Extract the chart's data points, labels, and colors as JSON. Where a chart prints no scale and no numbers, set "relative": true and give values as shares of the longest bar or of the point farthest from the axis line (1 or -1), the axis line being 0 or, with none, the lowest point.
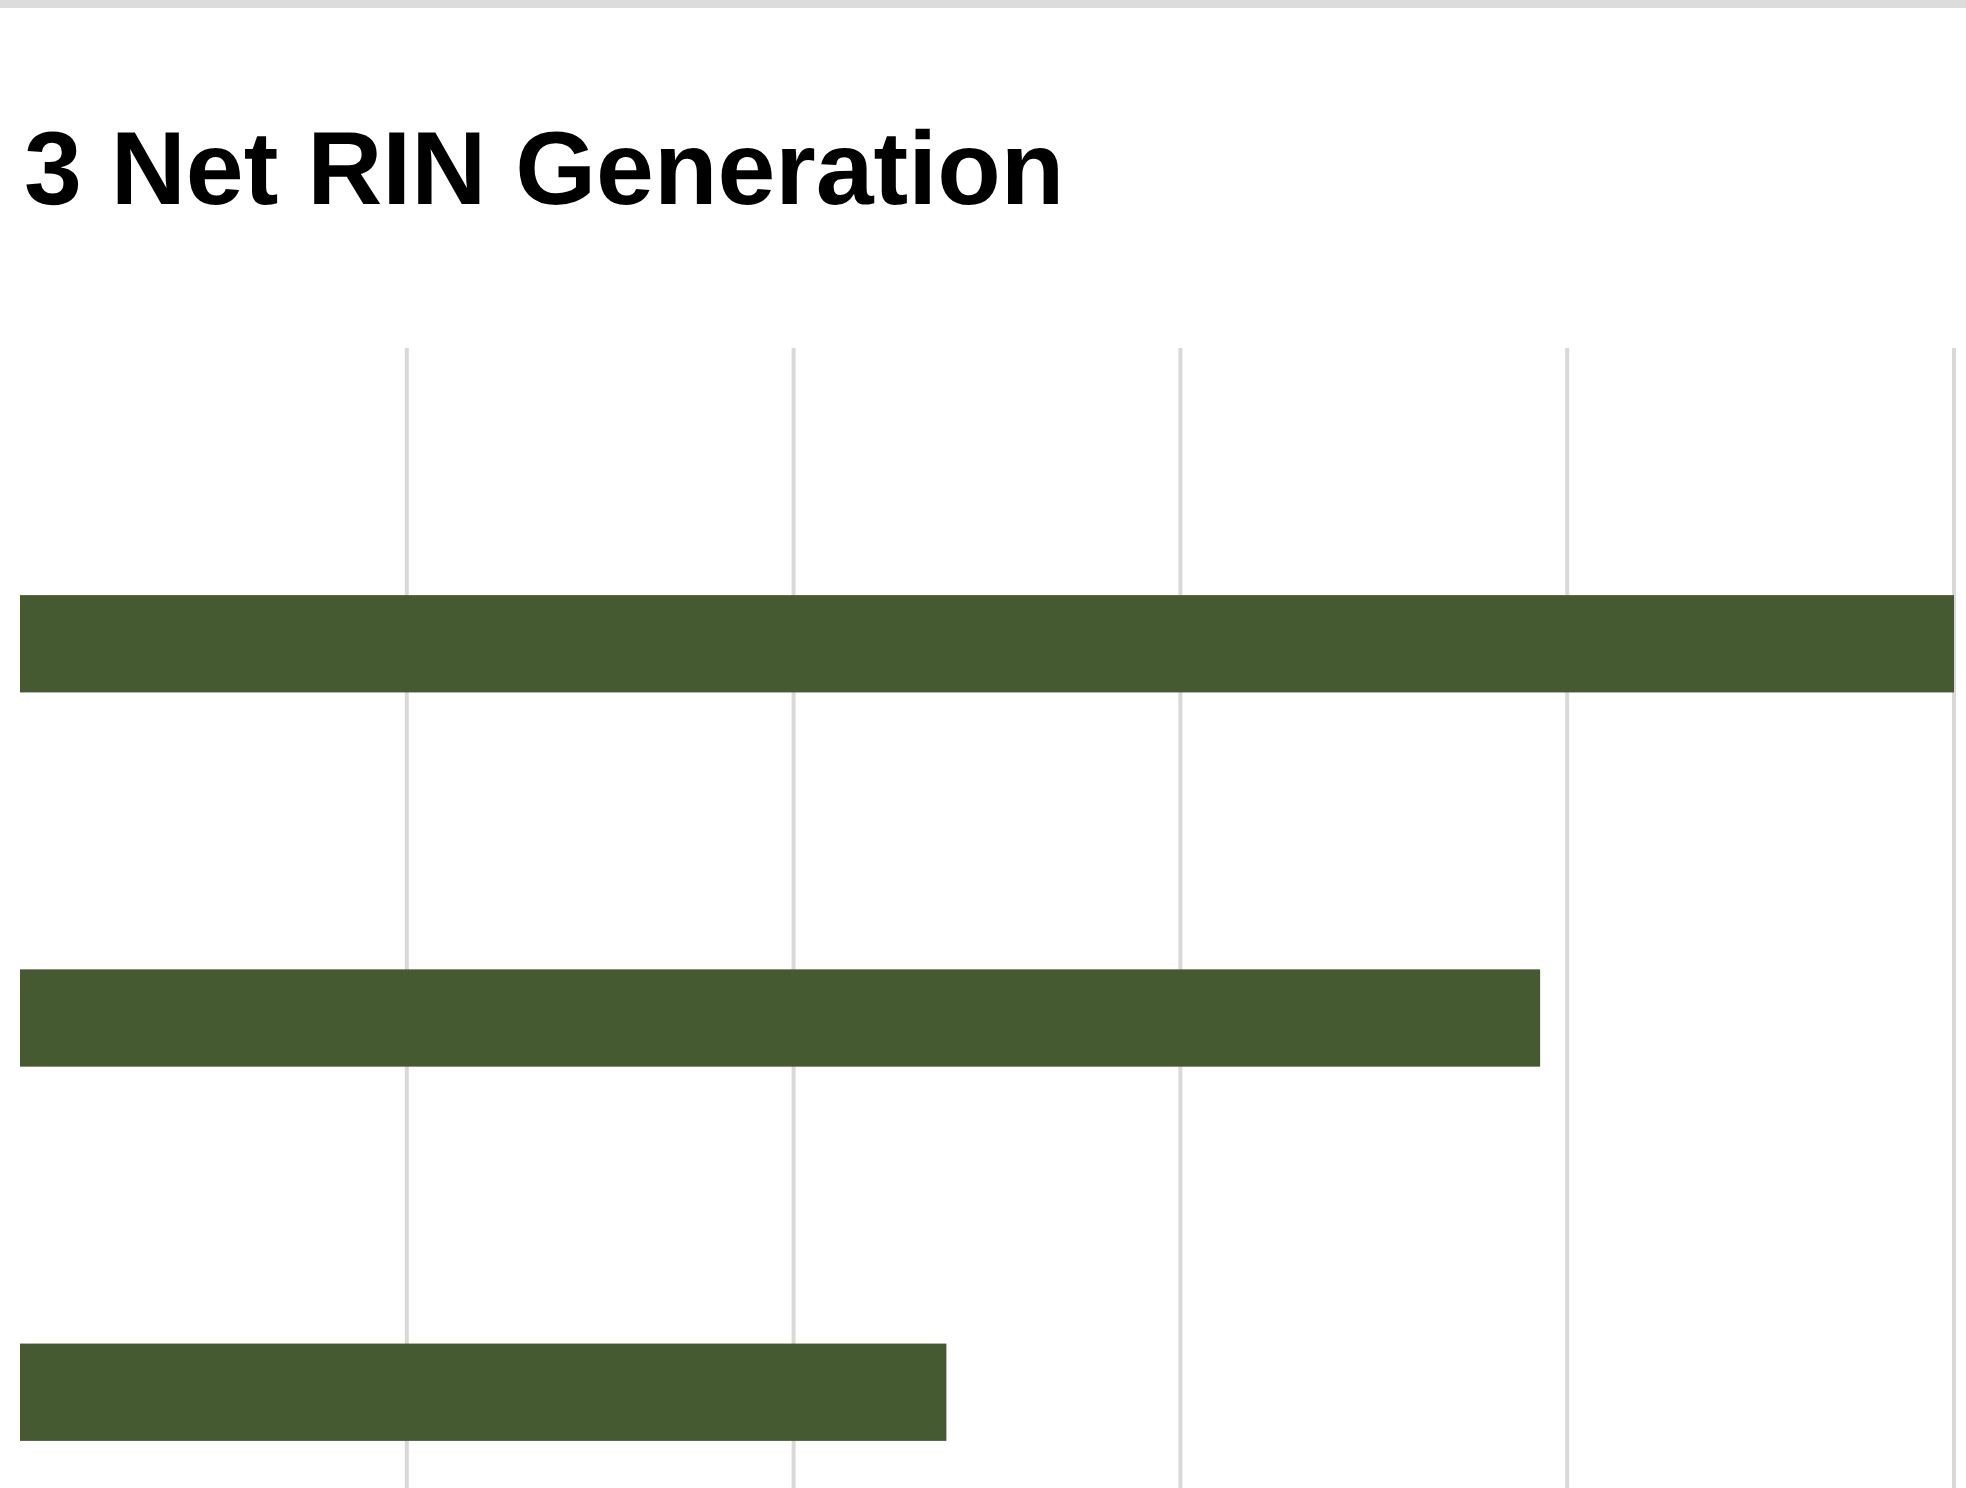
{
  "chart_data": {
    "type": "bar",
    "orientation": "horizontal",
    "relative": true,
    "title": "3 Net RIN Generation",
    "categories": [
      null,
      null,
      null
    ],
    "values": [
      1,
      0.786,
      0.479
    ],
    "color": "#465a32",
    "grid": "x"
  }
}
